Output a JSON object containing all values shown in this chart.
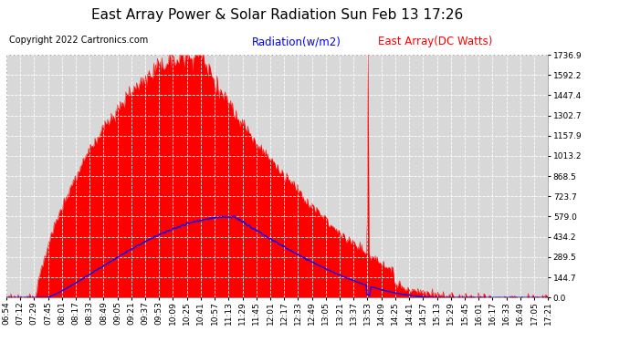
{
  "title": "East Array Power & Solar Radiation Sun Feb 13 17:26",
  "copyright": "Copyright 2022 Cartronics.com",
  "legend_blue": "Radiation(w/m2)",
  "legend_red": "East Array(DC Watts)",
  "bg_color": "#ffffff",
  "plot_bg_color": "#d8d8d8",
  "grid_color": "#ffffff",
  "y_ticks": [
    0.0,
    144.7,
    289.5,
    434.2,
    579.0,
    723.7,
    868.5,
    1013.2,
    1157.9,
    1302.7,
    1447.4,
    1592.2,
    1736.9
  ],
  "x_labels": [
    "06:54",
    "07:12",
    "07:29",
    "07:45",
    "08:01",
    "08:17",
    "08:33",
    "08:49",
    "09:05",
    "09:21",
    "09:37",
    "09:53",
    "10:09",
    "10:25",
    "10:41",
    "10:57",
    "11:13",
    "11:29",
    "11:45",
    "12:01",
    "12:17",
    "12:33",
    "12:49",
    "13:05",
    "13:21",
    "13:37",
    "13:53",
    "14:09",
    "14:25",
    "14:41",
    "14:57",
    "15:13",
    "15:29",
    "15:45",
    "16:01",
    "16:17",
    "16:33",
    "16:49",
    "17:05",
    "17:21"
  ],
  "ymax": 1736.9,
  "fill_color": "#ff0000",
  "line_color": "#0000ff",
  "title_fontsize": 11,
  "axis_fontsize": 6.5,
  "copyright_fontsize": 7,
  "legend_fontsize": 8.5
}
